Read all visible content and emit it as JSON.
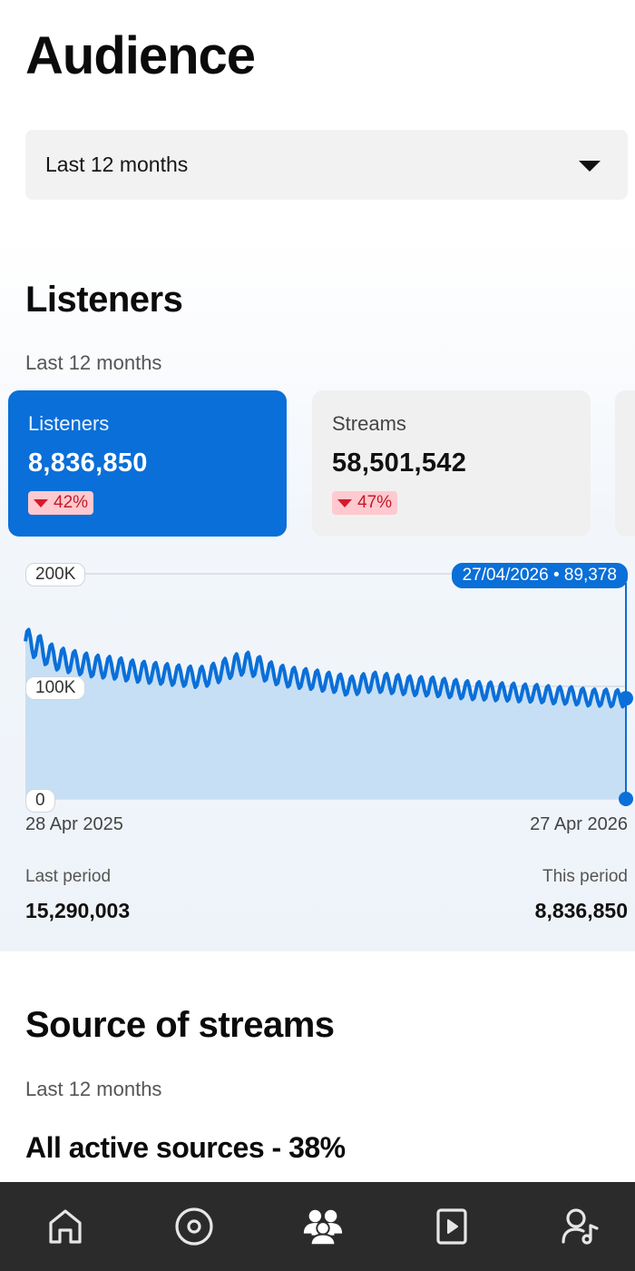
{
  "page": {
    "title": "Audience"
  },
  "period_select": {
    "value": "Last 12 months"
  },
  "listeners": {
    "title": "Listeners",
    "subtitle": "Last 12 months",
    "cards": [
      {
        "label": "Listeners",
        "value": "8,836,850",
        "change": "42%",
        "trend": "down",
        "selected": true
      },
      {
        "label": "Streams",
        "value": "58,501,542",
        "change": "47%",
        "trend": "down",
        "selected": false
      }
    ],
    "last_period_label": "Last period",
    "last_period_value": "15,290,003",
    "this_period_label": "This period",
    "this_period_value": "8,836,850"
  },
  "chart_data": {
    "type": "area",
    "x_start": "28 Apr 2025",
    "x_end": "27 Apr 2026",
    "y_ticks": [
      "200K",
      "100K",
      "0"
    ],
    "ylim": [
      0,
      200000
    ],
    "tooltip": "27/04/2026 • 89,378",
    "series": [
      {
        "weekly_values_approx": [
          140000,
          136000,
          128000,
          124000,
          122000,
          120000,
          118000,
          117000,
          116000,
          114000,
          113000,
          112000,
          111000,
          110000,
          109000,
          108000,
          110000,
          114000,
          118000,
          121000,
          118000,
          113000,
          110000,
          108000,
          107000,
          106000,
          104000,
          103000,
          100000,
          102000,
          104000,
          103000,
          102000,
          101000,
          100000,
          100000,
          99000,
          98000,
          97000,
          96000,
          96000,
          95000,
          95000,
          94000,
          94000,
          93000,
          92000,
          92000,
          91000,
          90000,
          90000,
          89378
        ]
      }
    ],
    "colors": {
      "line": "#0a6fd8",
      "fill": "#c7dff5"
    }
  },
  "source_of_streams": {
    "title": "Source of streams",
    "subtitle": "Last 12 months",
    "headline": "All active sources - 38%"
  },
  "bottom_nav": {
    "items": [
      {
        "icon": "home-icon"
      },
      {
        "icon": "music-disc-icon"
      },
      {
        "icon": "audience-icon",
        "active": true
      },
      {
        "icon": "video-play-icon"
      },
      {
        "icon": "artist-profile-icon"
      }
    ]
  }
}
